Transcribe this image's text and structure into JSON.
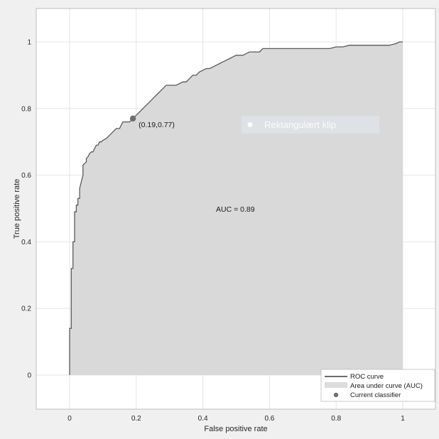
{
  "chart_data": {
    "type": "line",
    "xlabel": "False positive rate",
    "ylabel": "True positive rate",
    "xlim": [
      -0.1,
      1.1
    ],
    "ylim": [
      -0.1,
      1.1
    ],
    "xticks": [
      0,
      0.2,
      0.4,
      0.6,
      0.8,
      1
    ],
    "yticks": [
      0,
      0.2,
      0.4,
      0.6,
      0.8,
      1
    ],
    "xtick_labels": [
      "0",
      "0.2",
      "0.4",
      "0.6",
      "0.8",
      "1"
    ],
    "ytick_labels": [
      "0",
      "0.2",
      "0.4",
      "0.6",
      "0.8",
      "1"
    ],
    "grid": true,
    "legend_position": "bottom-right",
    "series": [
      {
        "name": "ROC curve",
        "color": "#5a5a5a",
        "fpr": [
          0,
          0,
          0.005,
          0.005,
          0.01,
          0.01,
          0.015,
          0.015,
          0.02,
          0.02,
          0.025,
          0.025,
          0.03,
          0.03,
          0.035,
          0.04,
          0.04,
          0.045,
          0.05,
          0.05,
          0.055,
          0.06,
          0.065,
          0.07,
          0.075,
          0.08,
          0.085,
          0.09,
          0.095,
          0.1,
          0.11,
          0.12,
          0.13,
          0.14,
          0.15,
          0.16,
          0.17,
          0.18,
          0.19,
          0.2,
          0.21,
          0.22,
          0.23,
          0.24,
          0.25,
          0.26,
          0.27,
          0.28,
          0.29,
          0.3,
          0.31,
          0.32,
          0.33,
          0.34,
          0.35,
          0.36,
          0.37,
          0.38,
          0.39,
          0.4,
          0.41,
          0.42,
          0.43,
          0.44,
          0.45,
          0.46,
          0.47,
          0.48,
          0.49,
          0.5,
          0.51,
          0.52,
          0.53,
          0.54,
          0.55,
          0.56,
          0.57,
          0.58,
          0.6,
          0.62,
          0.64,
          0.66,
          0.68,
          0.7,
          0.72,
          0.74,
          0.76,
          0.78,
          0.8,
          0.82,
          0.84,
          0.86,
          0.88,
          0.9,
          0.92,
          0.94,
          0.96,
          0.98,
          0.99,
          1
        ],
        "tpr": [
          0,
          0.14,
          0.14,
          0.32,
          0.32,
          0.4,
          0.4,
          0.49,
          0.49,
          0.51,
          0.51,
          0.53,
          0.53,
          0.56,
          0.58,
          0.6,
          0.63,
          0.635,
          0.64,
          0.65,
          0.655,
          0.665,
          0.67,
          0.67,
          0.68,
          0.69,
          0.69,
          0.7,
          0.7,
          0.705,
          0.71,
          0.72,
          0.73,
          0.74,
          0.74,
          0.76,
          0.76,
          0.76,
          0.77,
          0.78,
          0.79,
          0.8,
          0.81,
          0.82,
          0.83,
          0.84,
          0.85,
          0.86,
          0.87,
          0.87,
          0.87,
          0.87,
          0.875,
          0.88,
          0.88,
          0.89,
          0.9,
          0.9,
          0.91,
          0.915,
          0.92,
          0.92,
          0.925,
          0.93,
          0.935,
          0.94,
          0.945,
          0.95,
          0.955,
          0.96,
          0.96,
          0.96,
          0.965,
          0.97,
          0.97,
          0.97,
          0.97,
          0.98,
          0.98,
          0.98,
          0.98,
          0.98,
          0.98,
          0.98,
          0.98,
          0.98,
          0.98,
          0.98,
          0.985,
          0.985,
          0.99,
          0.99,
          0.99,
          0.99,
          0.99,
          0.99,
          0.99,
          0.995,
          1,
          1
        ]
      }
    ],
    "auc_fill_color": "#d9d9d9",
    "current_classifier": {
      "x": 0.19,
      "y": 0.77,
      "color": "#6e6e6e"
    },
    "annotations": {
      "point_label": "(0.19,0.77)",
      "auc_label": "AUC = 0.89",
      "overlay_label": "Rektangulært klip"
    },
    "legend": {
      "roc": "ROC curve",
      "area": "Area under curve (AUC)",
      "classifier": "Current classifier"
    }
  }
}
